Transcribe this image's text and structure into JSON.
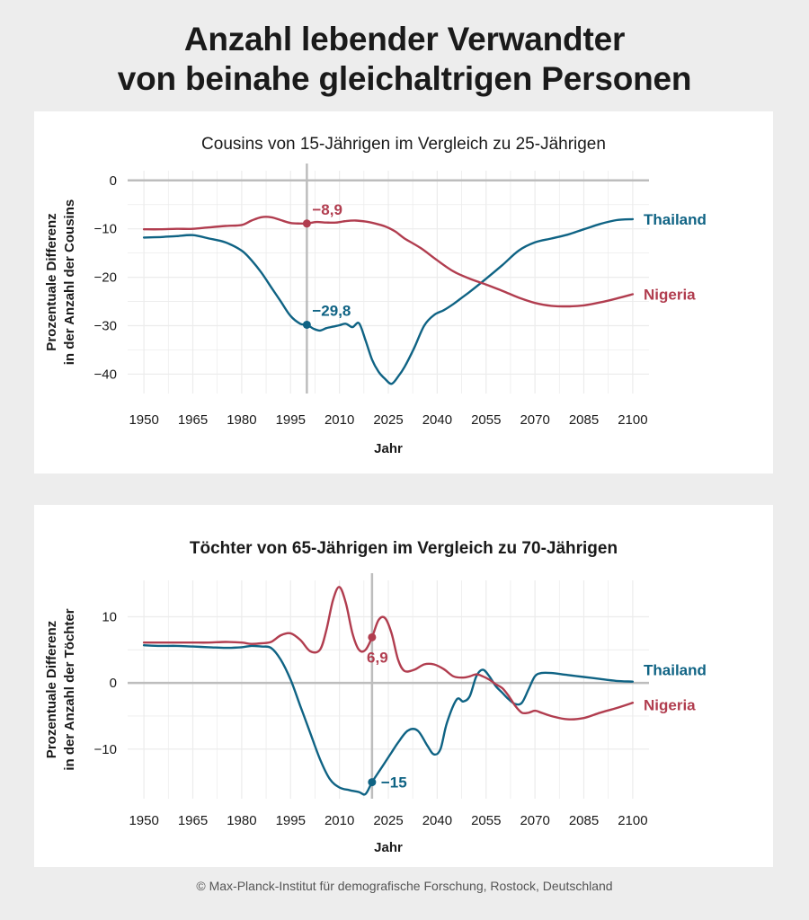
{
  "title": {
    "line1": "Anzahl lebender Verwandter",
    "line2": "von beinahe gleichaltrigen Personen"
  },
  "colors": {
    "thailand": "#0f6384",
    "nigeria": "#b13d4f",
    "marker_line": "#bdbdbd",
    "grid": "#ececec"
  },
  "footer": "© Max-Planck-Institut für demografische Forschung, Rostock, Deutschland",
  "chart_data": [
    {
      "type": "line",
      "title": "Cousins von 15-Jährigen im Vergleich zu 25-Jährigen",
      "title_bold": false,
      "xlabel": "Jahr",
      "ylabel_line1": "Prozentuale Differenz",
      "ylabel_line2": "in der Anzahl der Cousins",
      "xlim": [
        1945,
        2105
      ],
      "ylim": [
        -44,
        2
      ],
      "xticks": [
        1950,
        1965,
        1980,
        1995,
        2010,
        2025,
        2040,
        2055,
        2070,
        2085,
        2100
      ],
      "yticks": [
        0,
        -10,
        -20,
        -30,
        -40
      ],
      "ytick_labels": [
        "0",
        "−10",
        "−20",
        "−30",
        "−40"
      ],
      "vline_x": 2000,
      "series": [
        {
          "name": "Thailand",
          "color_key": "thailand",
          "x": [
            1950,
            1955,
            1960,
            1965,
            1970,
            1975,
            1980,
            1983,
            1986,
            1989,
            1992,
            1995,
            1998,
            2000,
            2002,
            2004,
            2006,
            2008,
            2010,
            2012,
            2014,
            2016,
            2018,
            2020,
            2022,
            2024,
            2026,
            2028,
            2030,
            2033,
            2036,
            2039,
            2042,
            2045,
            2048,
            2050,
            2055,
            2060,
            2065,
            2070,
            2075,
            2080,
            2085,
            2090,
            2095,
            2100
          ],
          "y": [
            -11.8,
            -11.7,
            -11.5,
            -11.3,
            -12,
            -12.8,
            -14.5,
            -16.5,
            -19,
            -22,
            -25,
            -28,
            -29.6,
            -29.8,
            -30.6,
            -31,
            -30.5,
            -30.2,
            -29.9,
            -29.6,
            -30.3,
            -29.5,
            -33,
            -37,
            -39.5,
            -41,
            -42,
            -40.5,
            -38.5,
            -34.5,
            -30,
            -27.8,
            -26.8,
            -25.5,
            -24,
            -23,
            -20.3,
            -17.5,
            -14.5,
            -12.8,
            -12,
            -11.2,
            -10.1,
            -9,
            -8.2,
            -8
          ]
        },
        {
          "name": "Nigeria",
          "color_key": "nigeria",
          "x": [
            1950,
            1955,
            1960,
            1965,
            1970,
            1975,
            1980,
            1983,
            1986,
            1989,
            1992,
            1995,
            1998,
            2000,
            2003,
            2006,
            2009,
            2012,
            2015,
            2018,
            2021,
            2024,
            2027,
            2030,
            2035,
            2040,
            2045,
            2050,
            2055,
            2060,
            2065,
            2070,
            2075,
            2080,
            2085,
            2090,
            2095,
            2100
          ],
          "y": [
            -10.1,
            -10.1,
            -10,
            -10,
            -9.7,
            -9.4,
            -9.2,
            -8.3,
            -7.6,
            -7.6,
            -8.2,
            -8.8,
            -8.9,
            -8.9,
            -8.6,
            -8.7,
            -8.7,
            -8.4,
            -8.3,
            -8.5,
            -8.9,
            -9.5,
            -10.5,
            -12,
            -14,
            -16.5,
            -18.8,
            -20.3,
            -21.5,
            -22.8,
            -24.2,
            -25.3,
            -25.9,
            -26,
            -25.8,
            -25.2,
            -24.4,
            -23.5
          ]
        }
      ],
      "annotations": [
        {
          "series": "Nigeria",
          "x": 2000,
          "y": -8.9,
          "label": "−8,9",
          "position": "above-right"
        },
        {
          "series": "Thailand",
          "x": 2000,
          "y": -29.8,
          "label": "−29,8",
          "position": "above-right"
        }
      ],
      "end_labels": [
        {
          "text": "Thailand",
          "color_key": "thailand",
          "y": -8
        },
        {
          "text": "Nigeria",
          "color_key": "nigeria",
          "y": -23.5
        }
      ]
    },
    {
      "type": "line",
      "title": "Töchter von 65-Jährigen im Vergleich zu 70-Jährigen",
      "title_bold": true,
      "xlabel": "Jahr",
      "ylabel_line1": "Prozentuale Differenz",
      "ylabel_line2": "in der Anzahl der Töchter",
      "xlim": [
        1945,
        2105
      ],
      "ylim": [
        -17.5,
        15.5
      ],
      "xticks": [
        1950,
        1965,
        1980,
        1995,
        2010,
        2025,
        2040,
        2055,
        2070,
        2085,
        2100
      ],
      "yticks": [
        10,
        0,
        -10
      ],
      "ytick_labels": [
        "10",
        "0",
        "−10"
      ],
      "vline_x": 2020,
      "series": [
        {
          "name": "Thailand",
          "color_key": "thailand",
          "x": [
            1950,
            1955,
            1960,
            1965,
            1970,
            1975,
            1980,
            1983,
            1986,
            1989,
            1992,
            1995,
            1998,
            2001,
            2004,
            2007,
            2010,
            2013,
            2016,
            2018,
            2020,
            2022,
            2024,
            2026,
            2028,
            2031,
            2034,
            2037,
            2039,
            2041,
            2043,
            2046,
            2048,
            2050,
            2052,
            2054,
            2056,
            2058,
            2060,
            2062,
            2064,
            2066,
            2068,
            2070,
            2072,
            2075,
            2080,
            2085,
            2090,
            2095,
            2100
          ],
          "y": [
            5.7,
            5.6,
            5.6,
            5.5,
            5.4,
            5.3,
            5.4,
            5.6,
            5.5,
            5.3,
            3.5,
            0.5,
            -3.5,
            -7.5,
            -11.5,
            -14.5,
            -15.8,
            -16.2,
            -16.5,
            -16.8,
            -15,
            -13.5,
            -12,
            -10.5,
            -9,
            -7.2,
            -7.2,
            -9.5,
            -10.8,
            -10,
            -6,
            -2.5,
            -2.8,
            -2,
            1,
            2,
            1,
            -0.5,
            -1.5,
            -2.5,
            -3.2,
            -3,
            -1,
            1,
            1.5,
            1.5,
            1.2,
            0.9,
            0.6,
            0.3,
            0.2
          ]
        },
        {
          "name": "Nigeria",
          "color_key": "nigeria",
          "x": [
            1950,
            1955,
            1960,
            1965,
            1970,
            1975,
            1980,
            1983,
            1986,
            1989,
            1992,
            1995,
            1998,
            2001,
            2004,
            2006,
            2008,
            2010,
            2012,
            2014,
            2016,
            2018,
            2020,
            2022,
            2024,
            2026,
            2028,
            2030,
            2033,
            2036,
            2039,
            2042,
            2045,
            2048,
            2050,
            2052,
            2054,
            2056,
            2058,
            2060,
            2062,
            2064,
            2066,
            2068,
            2070,
            2072,
            2075,
            2080,
            2085,
            2090,
            2095,
            2100
          ],
          "y": [
            6.1,
            6.1,
            6.1,
            6.1,
            6.1,
            6.2,
            6.1,
            5.9,
            6,
            6.2,
            7.2,
            7.5,
            6.5,
            4.8,
            5,
            8,
            12.5,
            14.5,
            12,
            7.5,
            5,
            5,
            6.9,
            9.5,
            9.8,
            7.5,
            3.5,
            1.8,
            2,
            2.8,
            2.8,
            2.1,
            1,
            0.8,
            1,
            1.3,
            1,
            0.5,
            -0.2,
            -0.8,
            -2,
            -3.5,
            -4.5,
            -4.5,
            -4.2,
            -4.5,
            -5,
            -5.5,
            -5.3,
            -4.5,
            -3.8,
            -3
          ]
        }
      ],
      "annotations": [
        {
          "series": "Nigeria",
          "x": 2020,
          "y": 6.9,
          "label": "6,9",
          "position": "below"
        },
        {
          "series": "Thailand",
          "x": 2020,
          "y": -15,
          "label": "−15",
          "position": "right"
        }
      ],
      "end_labels": [
        {
          "text": "Thailand",
          "color_key": "thailand",
          "y": 2
        },
        {
          "text": "Nigeria",
          "color_key": "nigeria",
          "y": -3.3
        }
      ]
    }
  ]
}
